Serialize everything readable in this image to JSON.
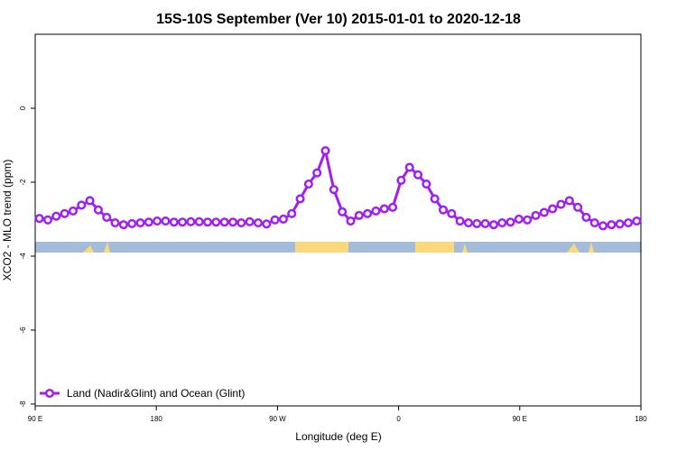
{
  "chart_data": {
    "type": "line",
    "title": "15S-10S September (Ver 10)   2015-01-01 to 2020-12-18",
    "xlabel": "Longitude (deg E)",
    "ylabel": "XCO2 - MLO trend (ppm)",
    "x": [
      93.125,
      99.375,
      105.625,
      111.875,
      118.125,
      124.375,
      130.625,
      136.875,
      143.125,
      149.375,
      155.625,
      161.875,
      168.125,
      174.375,
      180.625,
      186.875,
      193.125,
      199.375,
      205.625,
      211.875,
      218.125,
      224.375,
      230.625,
      236.875,
      243.125,
      249.375,
      255.625,
      261.875,
      268.125,
      274.375,
      280.625,
      286.875,
      293.125,
      299.375,
      305.625,
      311.875,
      318.125,
      324.375,
      330.625,
      336.875,
      343.125,
      349.375,
      355.625,
      361.875,
      368.125,
      374.375,
      380.625,
      386.875,
      393.125,
      399.375,
      405.625,
      411.875,
      418.125,
      424.375,
      430.625,
      436.875,
      443.125,
      449.375,
      455.625,
      461.875,
      468.125,
      474.375,
      480.625,
      486.875,
      493.125,
      499.375,
      505.625,
      511.875,
      518.125,
      524.375,
      530.625,
      536.875
    ],
    "series": [
      {
        "name": "Land (Nadir&Glint) and Ocean (Glint)",
        "color": "#a020f0",
        "values": [
          -2.98,
          -3.02,
          -2.92,
          -2.85,
          -2.78,
          -2.62,
          -2.5,
          -2.75,
          -2.95,
          -3.1,
          -3.15,
          -3.12,
          -3.1,
          -3.08,
          -3.05,
          -3.05,
          -3.08,
          -3.08,
          -3.07,
          -3.07,
          -3.08,
          -3.08,
          -3.08,
          -3.08,
          -3.1,
          -3.07,
          -3.1,
          -3.13,
          -3.02,
          -3.0,
          -2.85,
          -2.45,
          -2.05,
          -1.75,
          -1.15,
          -2.2,
          -2.8,
          -3.05,
          -2.9,
          -2.85,
          -2.78,
          -2.72,
          -2.68,
          -1.95,
          -1.6,
          -1.8,
          -2.05,
          -2.45,
          -2.75,
          -2.85,
          -3.05,
          -3.1,
          -3.12,
          -3.12,
          -3.15,
          -3.1,
          -3.08,
          -3.0,
          -3.02,
          -2.9,
          -2.82,
          -2.72,
          -2.6,
          -2.5,
          -2.68,
          -2.95,
          -3.1,
          -3.18,
          -3.15,
          -3.13,
          -3.1,
          -3.05
        ]
      }
    ],
    "xlim": [
      90,
      540
    ],
    "xticks": [
      {
        "value": 90,
        "label": "90 E"
      },
      180,
      {
        "value": 270,
        "label": "90 W"
      },
      {
        "value": 360,
        "label": "0"
      },
      {
        "value": 450,
        "label": "90 E"
      },
      {
        "value": 540,
        "label": "180"
      }
    ],
    "ylim": [
      -8.05,
      2
    ],
    "yticks": [
      0,
      -2,
      -4,
      -6,
      -8
    ],
    "legend": "lower left"
  }
}
